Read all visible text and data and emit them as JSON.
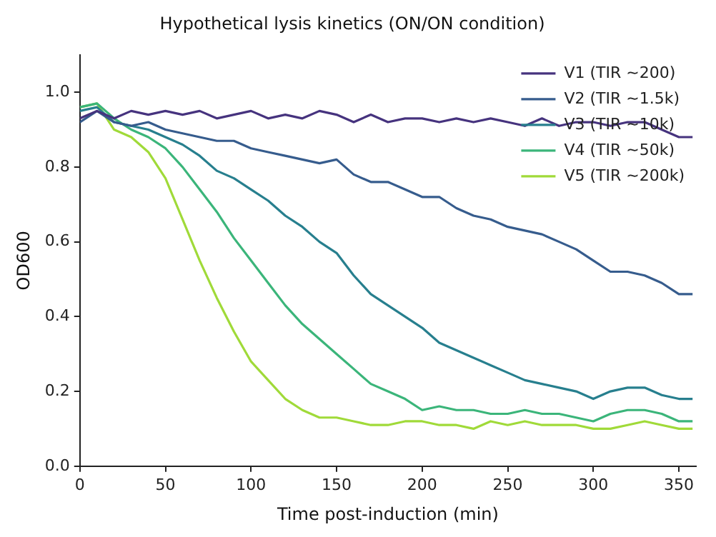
{
  "chart_data": {
    "type": "line",
    "title": "Hypothetical lysis kinetics (ON/ON condition)",
    "xlabel": "Time post-induction (min)",
    "ylabel": "OD600",
    "x": [
      0,
      10,
      20,
      30,
      40,
      50,
      60,
      70,
      80,
      90,
      100,
      110,
      120,
      130,
      140,
      150,
      160,
      170,
      180,
      190,
      200,
      210,
      220,
      230,
      240,
      250,
      260,
      270,
      280,
      290,
      300,
      310,
      320,
      330,
      340,
      350,
      358
    ],
    "series": [
      {
        "name": "V1 (TIR ~200)",
        "color": "#46337e",
        "values": [
          0.93,
          0.95,
          0.93,
          0.95,
          0.94,
          0.95,
          0.94,
          0.95,
          0.93,
          0.94,
          0.95,
          0.93,
          0.94,
          0.93,
          0.95,
          0.94,
          0.92,
          0.94,
          0.92,
          0.93,
          0.93,
          0.92,
          0.93,
          0.92,
          0.93,
          0.92,
          0.91,
          0.93,
          0.91,
          0.92,
          0.92,
          0.91,
          0.92,
          0.92,
          0.9,
          0.88,
          0.88
        ]
      },
      {
        "name": "V2 (TIR ~1.5k)",
        "color": "#365c8d",
        "values": [
          0.92,
          0.95,
          0.92,
          0.91,
          0.92,
          0.9,
          0.89,
          0.88,
          0.87,
          0.87,
          0.85,
          0.84,
          0.83,
          0.82,
          0.81,
          0.82,
          0.78,
          0.76,
          0.76,
          0.74,
          0.72,
          0.72,
          0.69,
          0.67,
          0.66,
          0.64,
          0.63,
          0.62,
          0.6,
          0.58,
          0.55,
          0.52,
          0.52,
          0.51,
          0.49,
          0.46,
          0.46
        ]
      },
      {
        "name": "V3 (TIR ~10k)",
        "color": "#277f8e",
        "values": [
          0.95,
          0.96,
          0.92,
          0.91,
          0.9,
          0.88,
          0.86,
          0.83,
          0.79,
          0.77,
          0.74,
          0.71,
          0.67,
          0.64,
          0.6,
          0.57,
          0.51,
          0.46,
          0.43,
          0.4,
          0.37,
          0.33,
          0.31,
          0.29,
          0.27,
          0.25,
          0.23,
          0.22,
          0.21,
          0.2,
          0.18,
          0.2,
          0.21,
          0.21,
          0.19,
          0.18,
          0.18
        ]
      },
      {
        "name": "V4 (TIR ~50k)",
        "color": "#3bb57a",
        "values": [
          0.96,
          0.97,
          0.93,
          0.9,
          0.88,
          0.85,
          0.8,
          0.74,
          0.68,
          0.61,
          0.55,
          0.49,
          0.43,
          0.38,
          0.34,
          0.3,
          0.26,
          0.22,
          0.2,
          0.18,
          0.15,
          0.16,
          0.15,
          0.15,
          0.14,
          0.14,
          0.15,
          0.14,
          0.14,
          0.13,
          0.12,
          0.14,
          0.15,
          0.15,
          0.14,
          0.12,
          0.12
        ]
      },
      {
        "name": "V5 (TIR ~200k)",
        "color": "#a0da39",
        "values": [
          0.96,
          0.97,
          0.9,
          0.88,
          0.84,
          0.77,
          0.66,
          0.55,
          0.45,
          0.36,
          0.28,
          0.23,
          0.18,
          0.15,
          0.13,
          0.13,
          0.12,
          0.11,
          0.11,
          0.12,
          0.12,
          0.11,
          0.11,
          0.1,
          0.12,
          0.11,
          0.12,
          0.11,
          0.11,
          0.11,
          0.1,
          0.1,
          0.11,
          0.12,
          0.11,
          0.1,
          0.1
        ]
      }
    ],
    "xlim": [
      0,
      360
    ],
    "xticks": [
      0,
      50,
      100,
      150,
      200,
      250,
      300,
      350
    ],
    "ylim": [
      0,
      1.1
    ],
    "yticks": [
      {
        "value": 0,
        "label": "0.0"
      },
      {
        "value": 0.2,
        "label": "0.2"
      },
      {
        "value": 0.4,
        "label": "0.4"
      },
      {
        "value": 0.6,
        "label": "0.6"
      },
      {
        "value": 0.8,
        "label": "0.8"
      },
      {
        "value": 1,
        "label": "1.0"
      }
    ],
    "grid": false,
    "legend": "top right",
    "marker": "none",
    "line_style": "solid"
  }
}
